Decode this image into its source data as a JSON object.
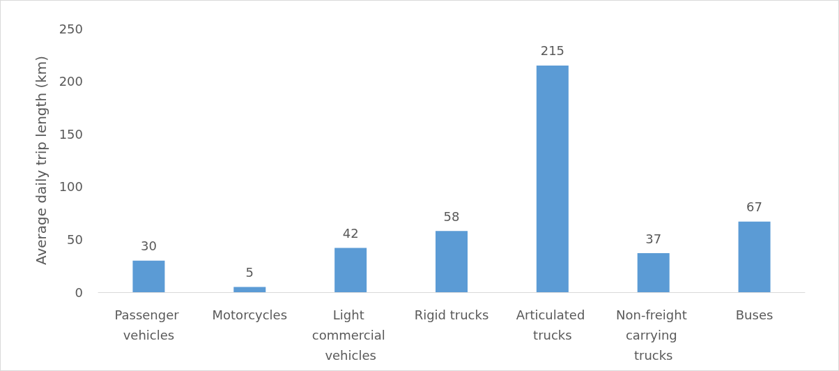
{
  "chart_data": {
    "type": "bar",
    "ylabel": "Average daily trip length (km)",
    "categories": [
      "Passenger vehicles",
      "Motorcycles",
      "Light commercial vehicles",
      "Rigid trucks",
      "Articulated trucks",
      "Non-freight carrying trucks",
      "Buses"
    ],
    "values": [
      30,
      5,
      42,
      58,
      215,
      37,
      67
    ],
    "color": "#5b9bd5",
    "ylim": [
      0,
      250
    ],
    "yticks": [
      0,
      50,
      100,
      150,
      200,
      250
    ],
    "grid": false,
    "data_labels": true
  }
}
